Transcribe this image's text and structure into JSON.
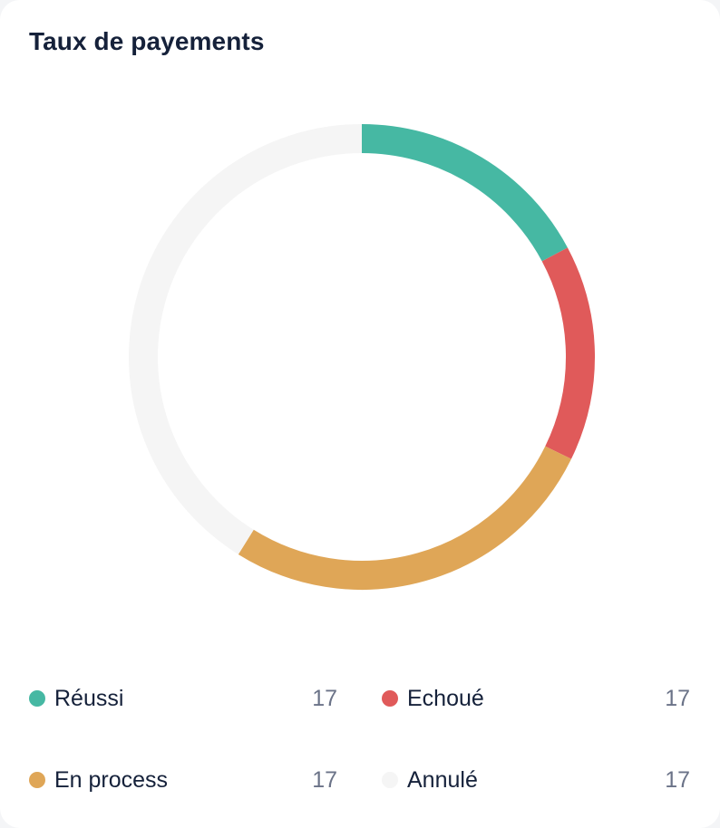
{
  "title": "Taux de payements",
  "chart_data": {
    "type": "pie",
    "variant": "donut",
    "title": "Taux de payements",
    "series": [
      {
        "name": "Réussi",
        "value": 17,
        "color": "#46b8a3"
      },
      {
        "name": "Echoué",
        "value": 17,
        "color": "#e05a5a"
      },
      {
        "name": "En process",
        "value": 17,
        "color": "#dfa657"
      },
      {
        "name": "Annulé",
        "value": 17,
        "color": "#f5f5f5"
      }
    ],
    "legend_position": "bottom"
  },
  "legend": [
    {
      "label": "Réussi",
      "value": "17",
      "color": "#46b8a3"
    },
    {
      "label": "Echoué",
      "value": "17",
      "color": "#e05a5a"
    },
    {
      "label": "En process",
      "value": "17",
      "color": "#dfa657"
    },
    {
      "label": "Annulé",
      "value": "17",
      "color": "#f5f5f5"
    }
  ]
}
